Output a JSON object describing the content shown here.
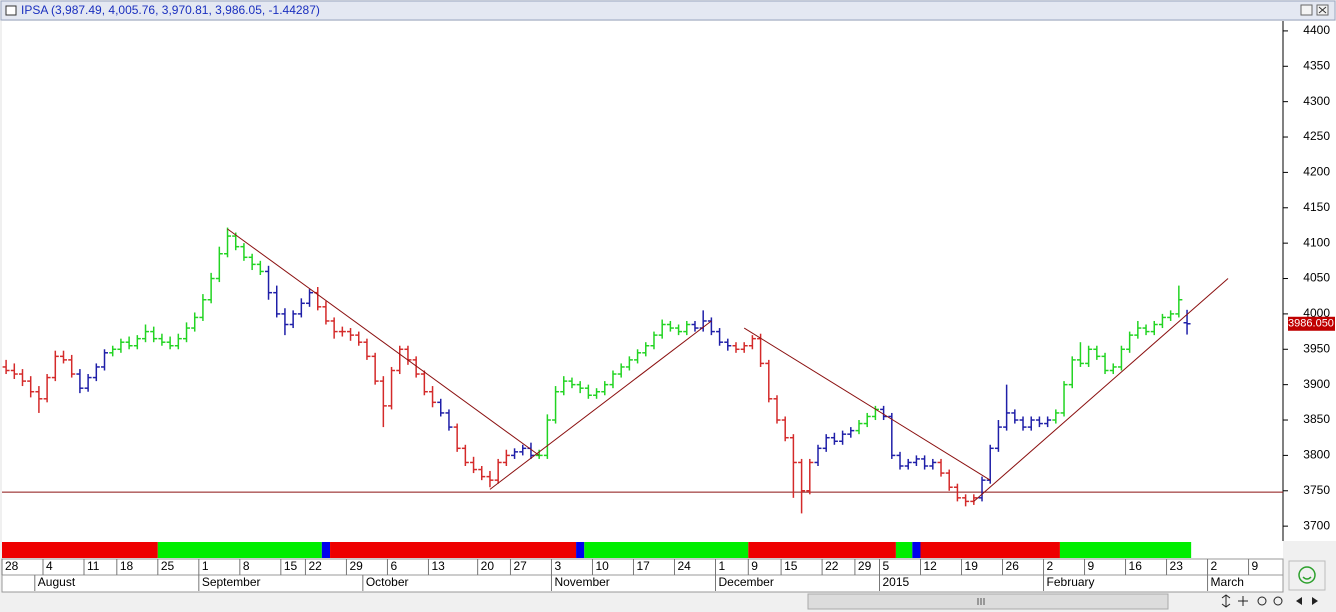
{
  "chart_data": {
    "type": "ohlc",
    "title": "IPSA (3,987.49, 4,005.76, 3,970.81, 3,986.05, -1.44287)",
    "last_price_label": "3986.050",
    "xlim": [
      -0.5,
      155.7
    ],
    "ylim": [
      3679,
      4414
    ],
    "yticks": [
      3700,
      3750,
      3800,
      3850,
      3900,
      3950,
      4000,
      4050,
      4100,
      4150,
      4200,
      4250,
      4300,
      4350,
      4400
    ],
    "day_ticks": [
      {
        "value": 0,
        "label": "28"
      },
      {
        "value": 5,
        "label": "4"
      },
      {
        "value": 10,
        "label": "11"
      },
      {
        "value": 14,
        "label": "18"
      },
      {
        "value": 19,
        "label": "25"
      },
      {
        "value": 24,
        "label": "1"
      },
      {
        "value": 29,
        "label": "8"
      },
      {
        "value": 34,
        "label": "15"
      },
      {
        "value": 37,
        "label": "22"
      },
      {
        "value": 42,
        "label": "29"
      },
      {
        "value": 47,
        "label": "6"
      },
      {
        "value": 52,
        "label": "13"
      },
      {
        "value": 58,
        "label": "20"
      },
      {
        "value": 62,
        "label": "27"
      },
      {
        "value": 67,
        "label": "3"
      },
      {
        "value": 72,
        "label": "10"
      },
      {
        "value": 77,
        "label": "17"
      },
      {
        "value": 82,
        "label": "24"
      },
      {
        "value": 87,
        "label": "1"
      },
      {
        "value": 91,
        "label": "9"
      },
      {
        "value": 95,
        "label": "15"
      },
      {
        "value": 100,
        "label": "22"
      },
      {
        "value": 104,
        "label": "29"
      },
      {
        "value": 107,
        "label": "5"
      },
      {
        "value": 112,
        "label": "12"
      },
      {
        "value": 117,
        "label": "19"
      },
      {
        "value": 122,
        "label": "26"
      },
      {
        "value": 127,
        "label": "2"
      },
      {
        "value": 132,
        "label": "9"
      },
      {
        "value": 137,
        "label": "16"
      },
      {
        "value": 142,
        "label": "23"
      },
      {
        "value": 147,
        "label": "2"
      },
      {
        "value": 152,
        "label": "9"
      }
    ],
    "month_ticks": [
      {
        "value": 4,
        "label": "August"
      },
      {
        "value": 24,
        "label": "September"
      },
      {
        "value": 44,
        "label": "October"
      },
      {
        "value": 67,
        "label": "November"
      },
      {
        "value": 87,
        "label": "December"
      },
      {
        "value": 107,
        "label": "2015"
      },
      {
        "value": 127,
        "label": "February"
      },
      {
        "value": 147,
        "label": "March"
      }
    ],
    "open": [
      3925,
      3920,
      3915,
      3905,
      3890,
      3880,
      3910,
      3940,
      3935,
      3915,
      3895,
      3910,
      3925,
      3945,
      3950,
      3960,
      3955,
      3965,
      3975,
      3965,
      3960,
      3955,
      3965,
      3980,
      3995,
      4020,
      4050,
      4085,
      4110,
      4095,
      4080,
      4070,
      4060,
      4030,
      4000,
      3985,
      4000,
      4015,
      4030,
      4010,
      3990,
      3975,
      3975,
      3970,
      3960,
      3940,
      3905,
      3870,
      3920,
      3950,
      3935,
      3915,
      3890,
      3875,
      3860,
      3840,
      3810,
      3790,
      3780,
      3770,
      3765,
      3790,
      3800,
      3805,
      3810,
      3800,
      3800,
      3850,
      3890,
      3905,
      3900,
      3895,
      3885,
      3890,
      3900,
      3915,
      3925,
      3935,
      3945,
      3955,
      3970,
      3985,
      3980,
      3975,
      3985,
      3980,
      3990,
      3975,
      3960,
      3955,
      3950,
      3955,
      3965,
      3930,
      3880,
      3850,
      3825,
      3790,
      3750,
      3790,
      3810,
      3825,
      3820,
      3830,
      3835,
      3845,
      3855,
      3865,
      3855,
      3800,
      3785,
      3790,
      3795,
      3785,
      3790,
      3775,
      3755,
      3740,
      3735,
      3740,
      3765,
      3810,
      3840,
      3860,
      3850,
      3840,
      3850,
      3845,
      3850,
      3860,
      3900,
      3935,
      3930,
      3950,
      3940,
      3920,
      3925,
      3950,
      3970,
      3980,
      3975,
      3985,
      3995,
      4000,
      3987.49
    ],
    "high": [
      3935,
      3930,
      3922,
      3912,
      3898,
      3915,
      3948,
      3948,
      3942,
      3922,
      3915,
      3930,
      3950,
      3955,
      3965,
      3968,
      3970,
      3985,
      3982,
      3972,
      3968,
      3972,
      3988,
      4002,
      4028,
      4058,
      4095,
      4122,
      4115,
      4100,
      4085,
      4075,
      4068,
      4040,
      4008,
      4005,
      4022,
      4035,
      4038,
      4018,
      3995,
      3982,
      3980,
      3975,
      3965,
      3945,
      3912,
      3925,
      3955,
      3955,
      3940,
      3920,
      3898,
      3880,
      3865,
      3845,
      3815,
      3798,
      3785,
      3778,
      3795,
      3808,
      3810,
      3815,
      3818,
      3808,
      3858,
      3898,
      3912,
      3910,
      3905,
      3900,
      3895,
      3905,
      3920,
      3930,
      3940,
      3950,
      3960,
      3975,
      3992,
      3990,
      3985,
      3990,
      3990,
      4005,
      3995,
      3980,
      3965,
      3960,
      3960,
      3970,
      3972,
      3935,
      3885,
      3855,
      3830,
      3795,
      3795,
      3815,
      3830,
      3832,
      3835,
      3840,
      3850,
      3860,
      3870,
      3870,
      3860,
      3805,
      3795,
      3800,
      3800,
      3795,
      3795,
      3780,
      3760,
      3745,
      3745,
      3770,
      3815,
      3850,
      3900,
      3865,
      3855,
      3855,
      3855,
      3855,
      3865,
      3905,
      3940,
      3960,
      3955,
      3955,
      3945,
      3930,
      3955,
      3975,
      3990,
      3985,
      3990,
      4000,
      4005,
      4040,
      4005.76
    ],
    "low": [
      3915,
      3908,
      3898,
      3882,
      3860,
      3875,
      3905,
      3930,
      3910,
      3888,
      3890,
      3905,
      3920,
      3940,
      3945,
      3950,
      3950,
      3960,
      3960,
      3955,
      3950,
      3950,
      3960,
      3975,
      3990,
      4015,
      4045,
      4080,
      4090,
      4075,
      4062,
      4055,
      4020,
      3995,
      3970,
      3980,
      3995,
      4010,
      4005,
      3985,
      3965,
      3968,
      3962,
      3955,
      3935,
      3900,
      3840,
      3865,
      3915,
      3928,
      3910,
      3885,
      3868,
      3855,
      3835,
      3805,
      3785,
      3775,
      3765,
      3755,
      3760,
      3785,
      3795,
      3800,
      3795,
      3795,
      3795,
      3845,
      3885,
      3895,
      3888,
      3880,
      3880,
      3885,
      3895,
      3910,
      3920,
      3930,
      3940,
      3950,
      3965,
      3975,
      3970,
      3970,
      3975,
      3975,
      3970,
      3955,
      3948,
      3945,
      3945,
      3950,
      3925,
      3875,
      3845,
      3820,
      3740,
      3718,
      3745,
      3785,
      3805,
      3815,
      3815,
      3825,
      3830,
      3840,
      3850,
      3850,
      3795,
      3780,
      3780,
      3785,
      3780,
      3780,
      3770,
      3750,
      3735,
      3728,
      3730,
      3735,
      3760,
      3805,
      3835,
      3845,
      3835,
      3835,
      3840,
      3840,
      3845,
      3855,
      3895,
      3925,
      3925,
      3935,
      3915,
      3915,
      3920,
      3945,
      3965,
      3970,
      3970,
      3980,
      3990,
      3995,
      3970.81
    ],
    "close": [
      3920,
      3915,
      3905,
      3890,
      3880,
      3910,
      3940,
      3935,
      3915,
      3895,
      3910,
      3925,
      3945,
      3950,
      3960,
      3955,
      3965,
      3975,
      3965,
      3960,
      3955,
      3965,
      3980,
      3995,
      4020,
      4050,
      4085,
      4110,
      4095,
      4080,
      4070,
      4060,
      4030,
      4000,
      3985,
      4000,
      4015,
      4030,
      4010,
      3990,
      3975,
      3975,
      3970,
      3960,
      3940,
      3905,
      3870,
      3920,
      3950,
      3935,
      3915,
      3890,
      3875,
      3860,
      3840,
      3810,
      3790,
      3780,
      3770,
      3765,
      3790,
      3800,
      3805,
      3810,
      3800,
      3800,
      3850,
      3890,
      3905,
      3900,
      3895,
      3885,
      3890,
      3900,
      3915,
      3925,
      3935,
      3945,
      3955,
      3970,
      3985,
      3980,
      3975,
      3985,
      3980,
      3990,
      3975,
      3960,
      3955,
      3950,
      3955,
      3965,
      3930,
      3880,
      3850,
      3825,
      3790,
      3750,
      3790,
      3810,
      3825,
      3820,
      3830,
      3835,
      3845,
      3855,
      3865,
      3855,
      3800,
      3785,
      3790,
      3795,
      3785,
      3790,
      3775,
      3755,
      3740,
      3735,
      3740,
      3765,
      3810,
      3840,
      3860,
      3850,
      3840,
      3850,
      3845,
      3850,
      3860,
      3900,
      3935,
      3930,
      3950,
      3940,
      3920,
      3925,
      3950,
      3970,
      3980,
      3975,
      3985,
      3995,
      4000,
      4020,
      3986.05
    ],
    "bar_colors": [
      {
        "color": "#d42a2a",
        "first": 0,
        "last": 8
      },
      {
        "color": "#1f1fa8",
        "first": 9,
        "last": 12
      },
      {
        "color": "#22d422",
        "first": 13,
        "last": 31
      },
      {
        "color": "#1f1fa8",
        "first": 32,
        "last": 37
      },
      {
        "color": "#d42a2a",
        "first": 38,
        "last": 52
      },
      {
        "color": "#1f1fa8",
        "first": 53,
        "last": 54
      },
      {
        "color": "#d42a2a",
        "first": 55,
        "last": 61
      },
      {
        "color": "#1f1fa8",
        "first": 62,
        "last": 64
      },
      {
        "color": "#22d422",
        "first": 65,
        "last": 83
      },
      {
        "color": "#1f1fa8",
        "first": 84,
        "last": 88
      },
      {
        "color": "#d42a2a",
        "first": 89,
        "last": 98
      },
      {
        "color": "#1f1fa8",
        "first": 99,
        "last": 103
      },
      {
        "color": "#22d422",
        "first": 104,
        "last": 106
      },
      {
        "color": "#1f1fa8",
        "first": 107,
        "last": 113
      },
      {
        "color": "#d42a2a",
        "first": 114,
        "last": 118
      },
      {
        "color": "#1f1fa8",
        "first": 119,
        "last": 127
      },
      {
        "color": "#22d422",
        "first": 128,
        "last": 143
      },
      {
        "color": "#1f1fa8",
        "first": 144,
        "last": 144
      }
    ],
    "trend_strip": [
      {
        "color": "#ee0000",
        "first": 0,
        "last": 18
      },
      {
        "color": "#00ee00",
        "first": 19,
        "last": 38
      },
      {
        "color": "#0000ee",
        "first": 39,
        "last": 39
      },
      {
        "color": "#ee0000",
        "first": 40,
        "last": 69
      },
      {
        "color": "#0000ee",
        "first": 70,
        "last": 70
      },
      {
        "color": "#00ee00",
        "first": 71,
        "last": 90
      },
      {
        "color": "#ee0000",
        "first": 91,
        "last": 108
      },
      {
        "color": "#00ee00",
        "first": 109,
        "last": 110
      },
      {
        "color": "#0000ee",
        "first": 111,
        "last": 111
      },
      {
        "color": "#ee0000",
        "first": 112,
        "last": 128
      },
      {
        "color": "#00ee00",
        "first": 129,
        "last": 144
      }
    ],
    "trendlines": [
      {
        "x": [
          27,
          65
        ],
        "y": [
          4120,
          3800
        ]
      },
      {
        "x": [
          59,
          86
        ],
        "y": [
          3752,
          3990
        ]
      },
      {
        "x": [
          90,
          120
        ],
        "y": [
          3980,
          3765
        ]
      },
      {
        "x": [
          118,
          149
        ],
        "y": [
          3735,
          4050
        ]
      }
    ],
    "trendline_color": "#8b1010",
    "hline": 3748
  }
}
